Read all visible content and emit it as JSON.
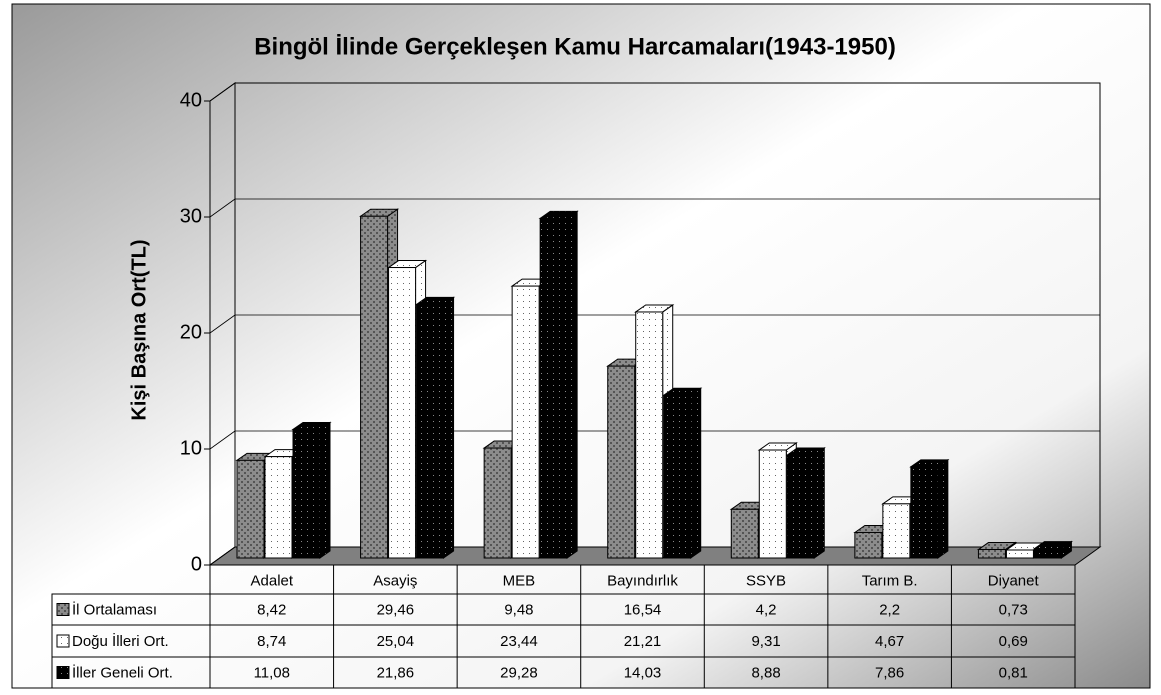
{
  "chart_data": {
    "type": "bar3d",
    "title": "Bingöl İlinde Gerçekleşen Kamu Harcamaları(1943-1950)",
    "y_label": "Kişi Başına Ort(TL)",
    "categories": [
      "Adalet",
      "Asayiş",
      "MEB",
      "Bayındırlık",
      "SSYB",
      "Tarım B.",
      "Diyanet"
    ],
    "series": [
      {
        "name": "İl Ortalaması",
        "color": "#8c8c8c",
        "values": [
          8.42,
          29.46,
          9.48,
          16.54,
          4.2,
          2.2,
          0.73
        ],
        "value_labels": [
          "8,42",
          "29,46",
          "9,48",
          "16,54",
          "4,2",
          "2,2",
          "0,73"
        ]
      },
      {
        "name": "Doğu İlleri Ort.",
        "color": "#ffffff",
        "values": [
          8.74,
          25.04,
          23.44,
          21.21,
          9.31,
          4.67,
          0.69
        ],
        "value_labels": [
          "8,74",
          "25,04",
          "23,44",
          "21,21",
          "9,31",
          "4,67",
          "0,69"
        ]
      },
      {
        "name": "İller Geneli Ort.",
        "color": "#000000",
        "values": [
          11.08,
          21.86,
          29.28,
          14.03,
          8.88,
          7.86,
          0.81
        ],
        "value_labels": [
          "11,08",
          "21,86",
          "29,28",
          "14,03",
          "8,88",
          "7,86",
          "0,81"
        ]
      }
    ],
    "ylim": [
      0,
      40
    ],
    "yticks": [
      0,
      10,
      20,
      30,
      40
    ],
    "grid": true
  }
}
